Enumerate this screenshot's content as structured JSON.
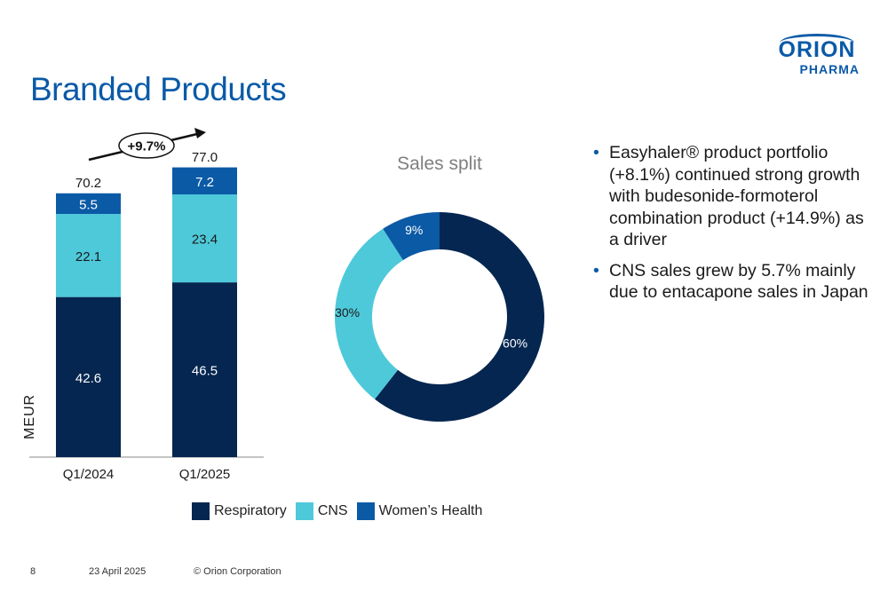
{
  "slide": {
    "title": "Branded Products",
    "logo": {
      "line1": "ORION",
      "line2": "PHARMA"
    }
  },
  "colors": {
    "respiratory": "#042650",
    "cns": "#4ec9da",
    "womens_health": "#0b5aa6",
    "title": "#0a5aa7"
  },
  "chart_data": [
    {
      "type": "bar",
      "stacked": true,
      "categories": [
        "Q1/2024",
        "Q1/2025"
      ],
      "series": [
        {
          "name": "Respiratory",
          "values": [
            42.6,
            46.5
          ]
        },
        {
          "name": "CNS",
          "values": [
            22.1,
            23.4
          ]
        },
        {
          "name": "Women’s Health",
          "values": [
            5.5,
            7.2
          ]
        }
      ],
      "totals": [
        70.2,
        77.0
      ],
      "total_labels": [
        "70.2",
        "77.0"
      ],
      "growth_label": "+9.7%",
      "ylabel": "MEUR",
      "ylim": [
        0,
        77.0
      ],
      "legend": "bottom"
    },
    {
      "type": "pie",
      "donut": true,
      "title": "Sales split",
      "slices": [
        {
          "name": "Respiratory",
          "value": 60,
          "label": "60%"
        },
        {
          "name": "CNS",
          "value": 30,
          "label": "30%"
        },
        {
          "name": "Women’s Health",
          "value": 9,
          "label": "9%"
        }
      ]
    }
  ],
  "legend_items": [
    "Respiratory",
    "CNS",
    "Women’s Health"
  ],
  "bullets": [
    "Easyhaler® product portfolio (+8.1%) continued strong growth with budesonide-formoterol combination product (+14.9%) as a driver",
    "CNS sales grew by 5.7% mainly due to entacapone sales in Japan"
  ],
  "footer": {
    "page": "8",
    "date": "23 April 2025",
    "copyright": "© Orion Corporation"
  }
}
